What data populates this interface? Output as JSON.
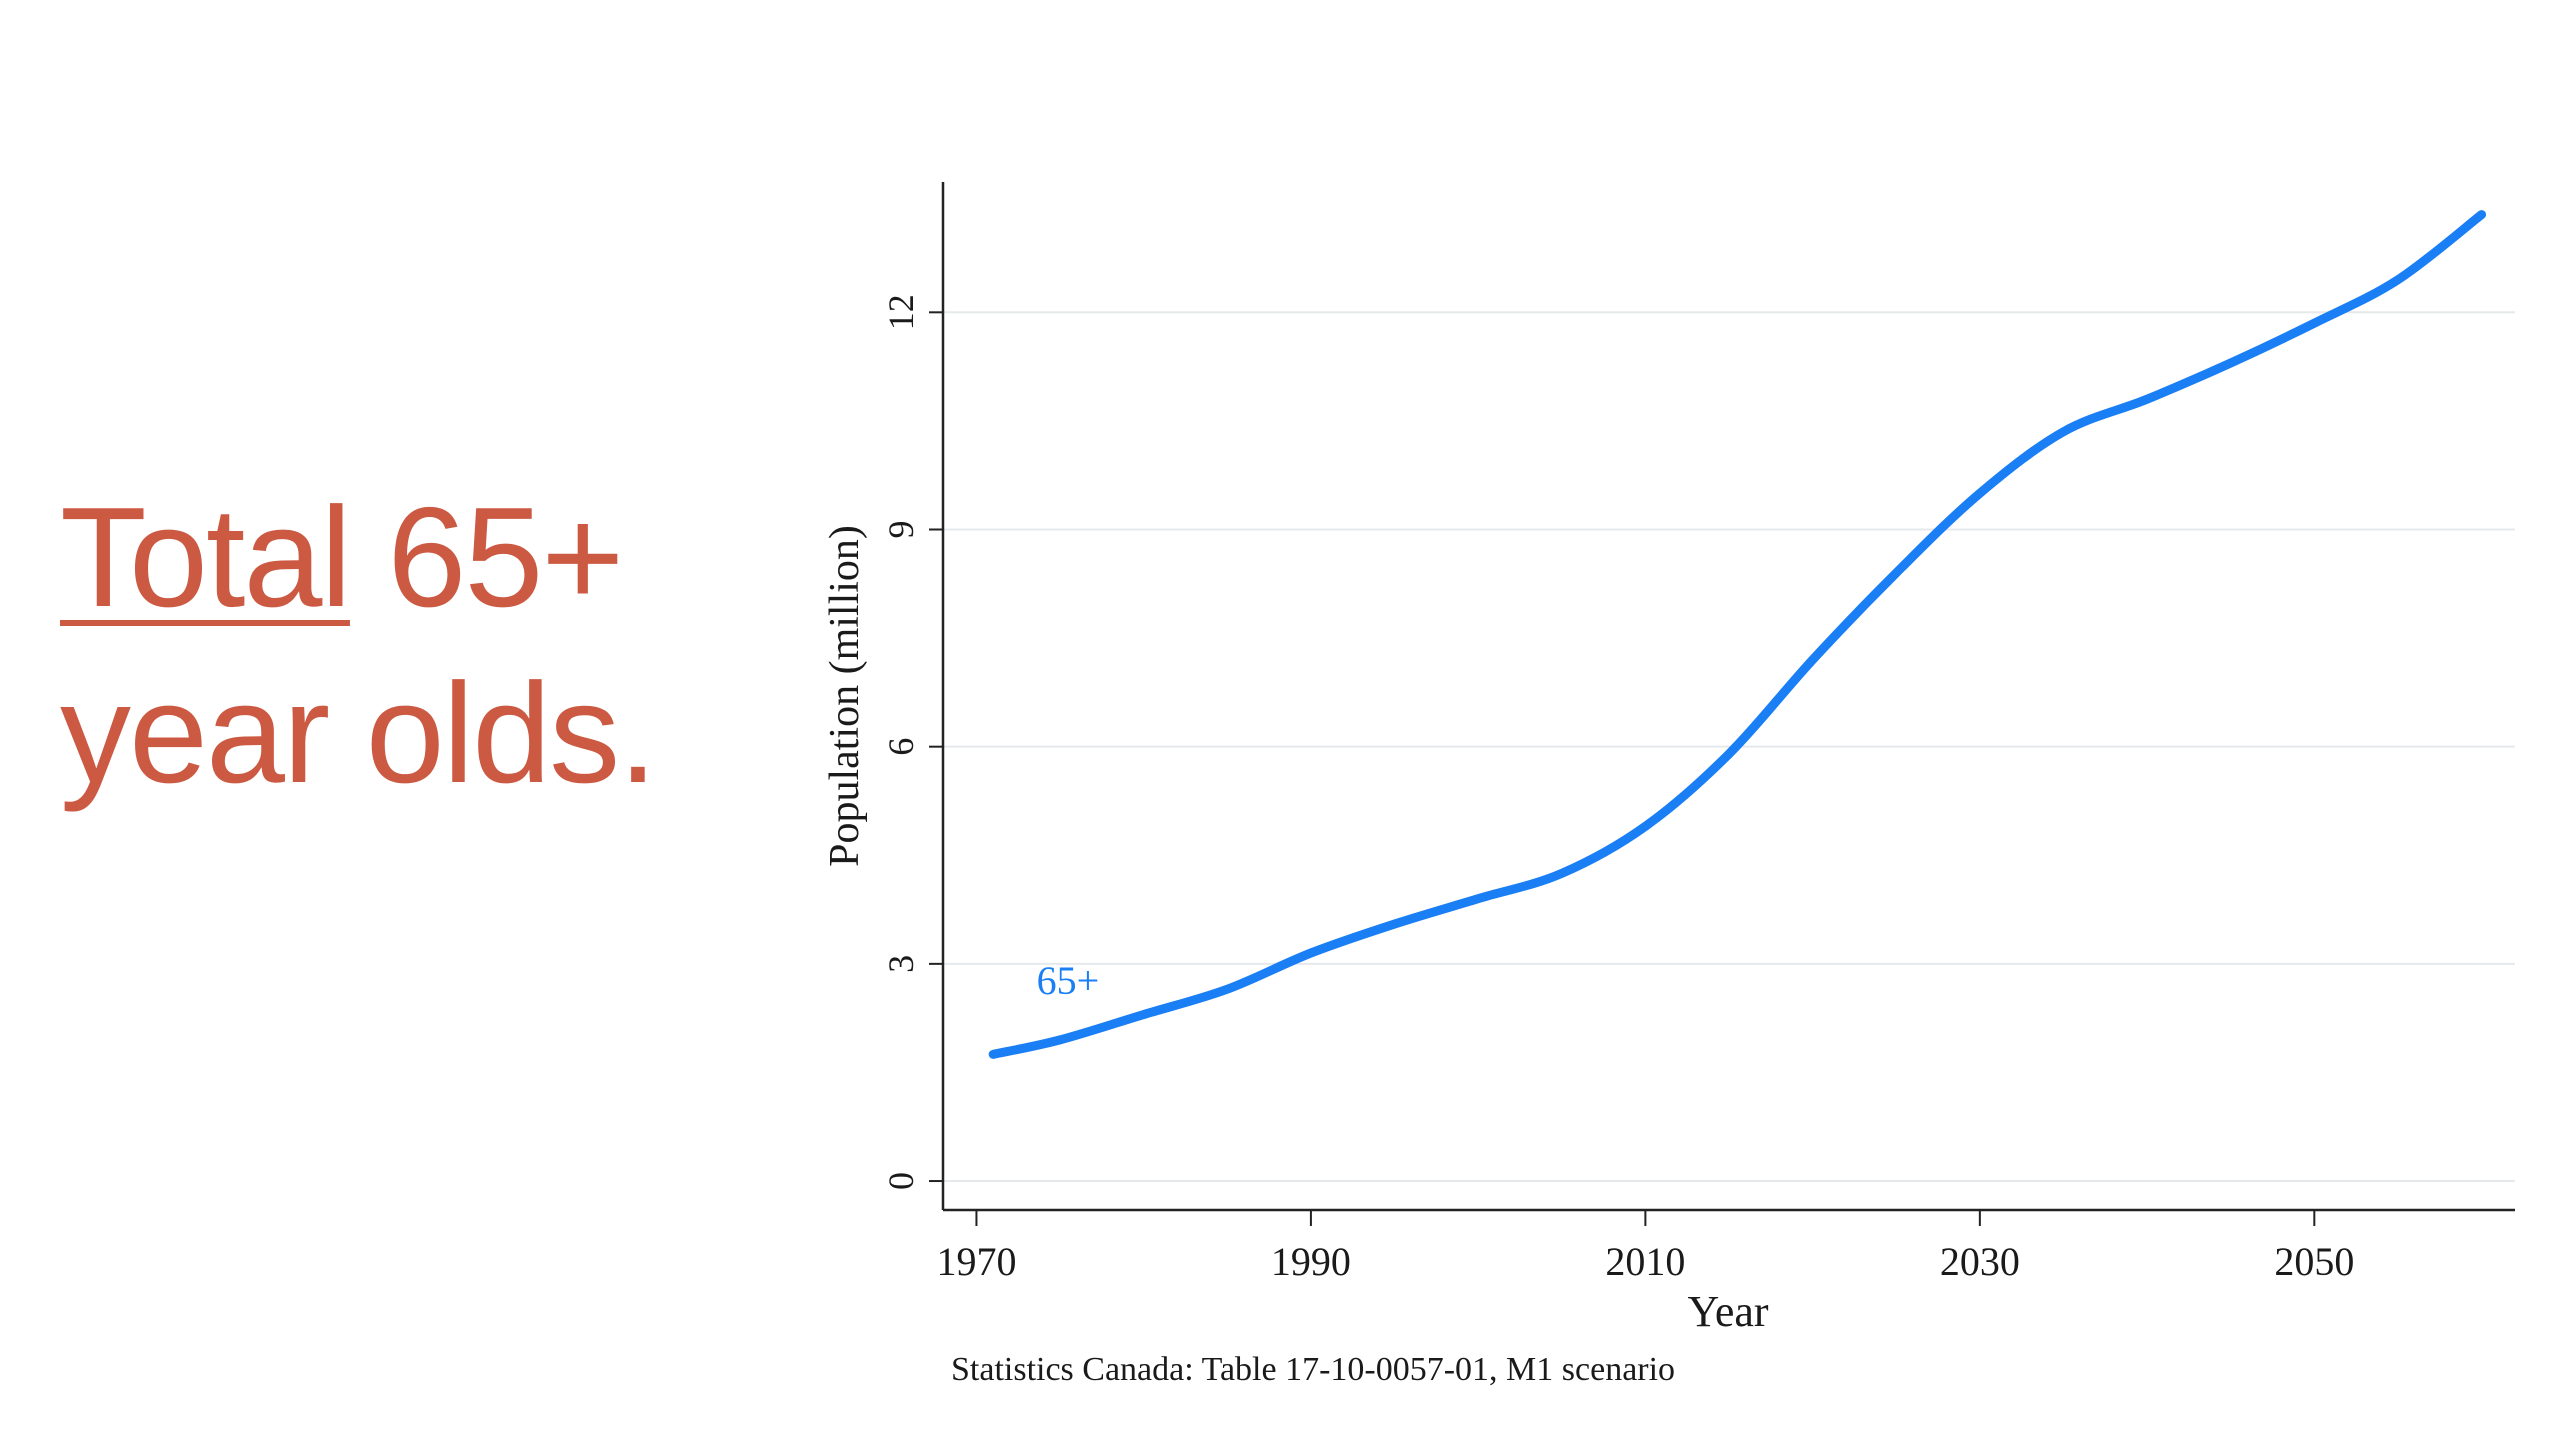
{
  "slide": {
    "headline_link": "Total",
    "headline_rest": " 65+",
    "headline_line2": "year olds.",
    "headline_color": "#cc5a43"
  },
  "chart_data": {
    "type": "line",
    "title": "",
    "xlabel": "Year",
    "ylabel": "Population (million)",
    "source_note": "Statistics Canada: Table 17-10-0057-01, M1 scenario",
    "xlim": [
      1968,
      2062
    ],
    "ylim": [
      -0.4,
      13.8
    ],
    "x_ticks": [
      1970,
      1990,
      2010,
      2030,
      2050
    ],
    "y_ticks": [
      0,
      3,
      6,
      9,
      12
    ],
    "grid": true,
    "legend": "none",
    "series": [
      {
        "name": "65+",
        "color": "#1a7ef5",
        "x": [
          1971,
          1975,
          1980,
          1985,
          1990,
          1995,
          2000,
          2005,
          2010,
          2015,
          2020,
          2025,
          2030,
          2035,
          2040,
          2045,
          2050,
          2055,
          2060
        ],
        "y": [
          1.75,
          1.95,
          2.3,
          2.65,
          3.15,
          3.55,
          3.9,
          4.25,
          4.9,
          5.9,
          7.2,
          8.4,
          9.5,
          10.35,
          10.8,
          11.3,
          11.85,
          12.45,
          13.35
        ]
      }
    ],
    "annotations": [
      {
        "text": "65+",
        "x": 1973,
        "y": 2.75
      }
    ]
  }
}
